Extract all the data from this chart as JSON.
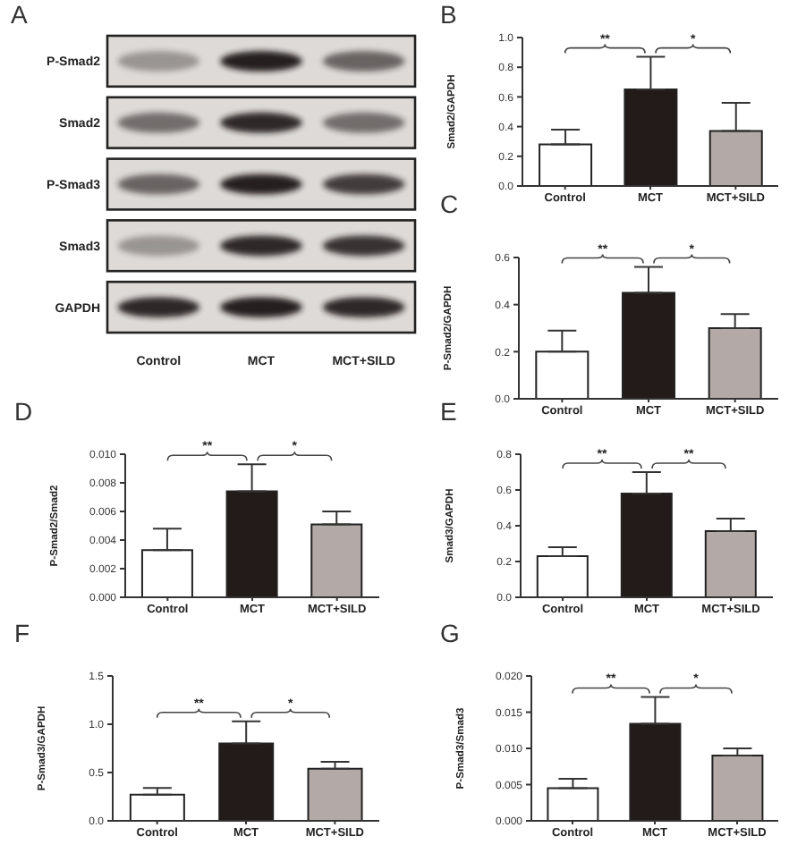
{
  "chart_data": [
    {
      "type": "other",
      "title": "A",
      "categories": [
        "Control",
        "MCT",
        "MCT+SILD"
      ],
      "annotations": [
        "P-Smad2",
        "Smad2",
        "P-Smad3",
        "Smad3",
        "GAPDH"
      ]
    },
    {
      "type": "bar",
      "title": "B",
      "ylabel": "Smad2/GAPDH",
      "categories": [
        "Control",
        "MCT",
        "MCT+SILD"
      ],
      "values": [
        0.28,
        0.65,
        0.37
      ],
      "colors": [
        "#ffffff",
        "#231b19",
        "#b3aaa7"
      ],
      "errors": [
        [
          0.28,
          0.38
        ],
        [
          0.65,
          0.87
        ],
        [
          0.37,
          0.56
        ]
      ],
      "ylim": [
        0,
        1
      ],
      "yticks": [
        {
          "value": 0,
          "label": "0.0"
        },
        {
          "value": 0.2,
          "label": "0.2"
        },
        {
          "value": 0.4,
          "label": "0.4"
        },
        {
          "value": 0.6,
          "label": "0.6"
        },
        {
          "value": 0.8,
          "label": "0.8"
        },
        {
          "value": 1,
          "label": "1.0"
        }
      ],
      "annotations": [
        "**",
        "*"
      ]
    },
    {
      "type": "bar",
      "title": "C",
      "ylabel": "P-Smad2/GAPDH",
      "categories": [
        "Control",
        "MCT",
        "MCT+SILD"
      ],
      "values": [
        0.2,
        0.45,
        0.3
      ],
      "colors": [
        "#ffffff",
        "#231b19",
        "#b3aaa7"
      ],
      "errors": [
        [
          0.2,
          0.29
        ],
        [
          0.45,
          0.56
        ],
        [
          0.3,
          0.36
        ]
      ],
      "ylim": [
        0,
        0.6
      ],
      "yticks": [
        {
          "value": 0,
          "label": "0.0"
        },
        {
          "value": 0.2,
          "label": "0.2"
        },
        {
          "value": 0.4,
          "label": "0.4"
        },
        {
          "value": 0.6,
          "label": "0.6"
        }
      ],
      "annotations": [
        "**",
        "*"
      ]
    },
    {
      "type": "bar",
      "title": "D",
      "ylabel": "P-Smad2/Smad2",
      "categories": [
        "Control",
        "MCT",
        "MCT+SILD"
      ],
      "values": [
        0.0033,
        0.0074,
        0.0051
      ],
      "colors": [
        "#ffffff",
        "#231b19",
        "#b3aaa7"
      ],
      "errors": [
        [
          0.0033,
          0.0048
        ],
        [
          0.0074,
          0.0093
        ],
        [
          0.0051,
          0.006
        ]
      ],
      "ylim": [
        0,
        0.01
      ],
      "yticks": [
        {
          "value": 0,
          "label": "0.000"
        },
        {
          "value": 0.002,
          "label": "0.002"
        },
        {
          "value": 0.004,
          "label": "0.004"
        },
        {
          "value": 0.006,
          "label": "0.006"
        },
        {
          "value": 0.008,
          "label": "0.008"
        },
        {
          "value": 0.01,
          "label": "0.010"
        }
      ],
      "annotations": [
        "**",
        "*"
      ]
    },
    {
      "type": "bar",
      "title": "E",
      "ylabel": "Smad3/GAPDH",
      "categories": [
        "Control",
        "MCT",
        "MCT+SILD"
      ],
      "values": [
        0.23,
        0.58,
        0.37
      ],
      "colors": [
        "#ffffff",
        "#231b19",
        "#b3aaa7"
      ],
      "errors": [
        [
          0.23,
          0.28
        ],
        [
          0.58,
          0.7
        ],
        [
          0.37,
          0.44
        ]
      ],
      "ylim": [
        0,
        0.8
      ],
      "yticks": [
        {
          "value": 0,
          "label": "0.0"
        },
        {
          "value": 0.2,
          "label": "0.2"
        },
        {
          "value": 0.4,
          "label": "0.4"
        },
        {
          "value": 0.6,
          "label": "0.6"
        },
        {
          "value": 0.8,
          "label": "0.8"
        }
      ],
      "annotations": [
        "**",
        "**"
      ]
    },
    {
      "type": "bar",
      "title": "F",
      "ylabel": "P-Smad3/GAPDH",
      "categories": [
        "Control",
        "MCT",
        "MCT+SILD"
      ],
      "values": [
        0.27,
        0.8,
        0.54
      ],
      "colors": [
        "#ffffff",
        "#231b19",
        "#b3aaa7"
      ],
      "errors": [
        [
          0.27,
          0.34
        ],
        [
          0.8,
          1.03
        ],
        [
          0.54,
          0.61
        ]
      ],
      "ylim": [
        0,
        1.5
      ],
      "yticks": [
        {
          "value": 0,
          "label": "0.0"
        },
        {
          "value": 0.5,
          "label": "0.5"
        },
        {
          "value": 1,
          "label": "1.0"
        },
        {
          "value": 1.5,
          "label": "1.5"
        }
      ],
      "annotations": [
        "**",
        "*"
      ]
    },
    {
      "type": "bar",
      "title": "G",
      "ylabel": "P-Smad3/Smad3",
      "categories": [
        "Control",
        "MCT",
        "MCT+SILD"
      ],
      "values": [
        0.0045,
        0.0134,
        0.009
      ],
      "colors": [
        "#ffffff",
        "#231b19",
        "#b3aaa7"
      ],
      "errors": [
        [
          0.0045,
          0.0058
        ],
        [
          0.0134,
          0.0171
        ],
        [
          0.009,
          0.01
        ]
      ],
      "ylim": [
        0,
        0.02
      ],
      "yticks": [
        {
          "value": 0,
          "label": "0.000"
        },
        {
          "value": 0.005,
          "label": "0.005"
        },
        {
          "value": 0.01,
          "label": "0.010"
        },
        {
          "value": 0.015,
          "label": "0.015"
        },
        {
          "value": 0.02,
          "label": "0.020"
        }
      ],
      "annotations": [
        "**",
        "*"
      ]
    }
  ]
}
